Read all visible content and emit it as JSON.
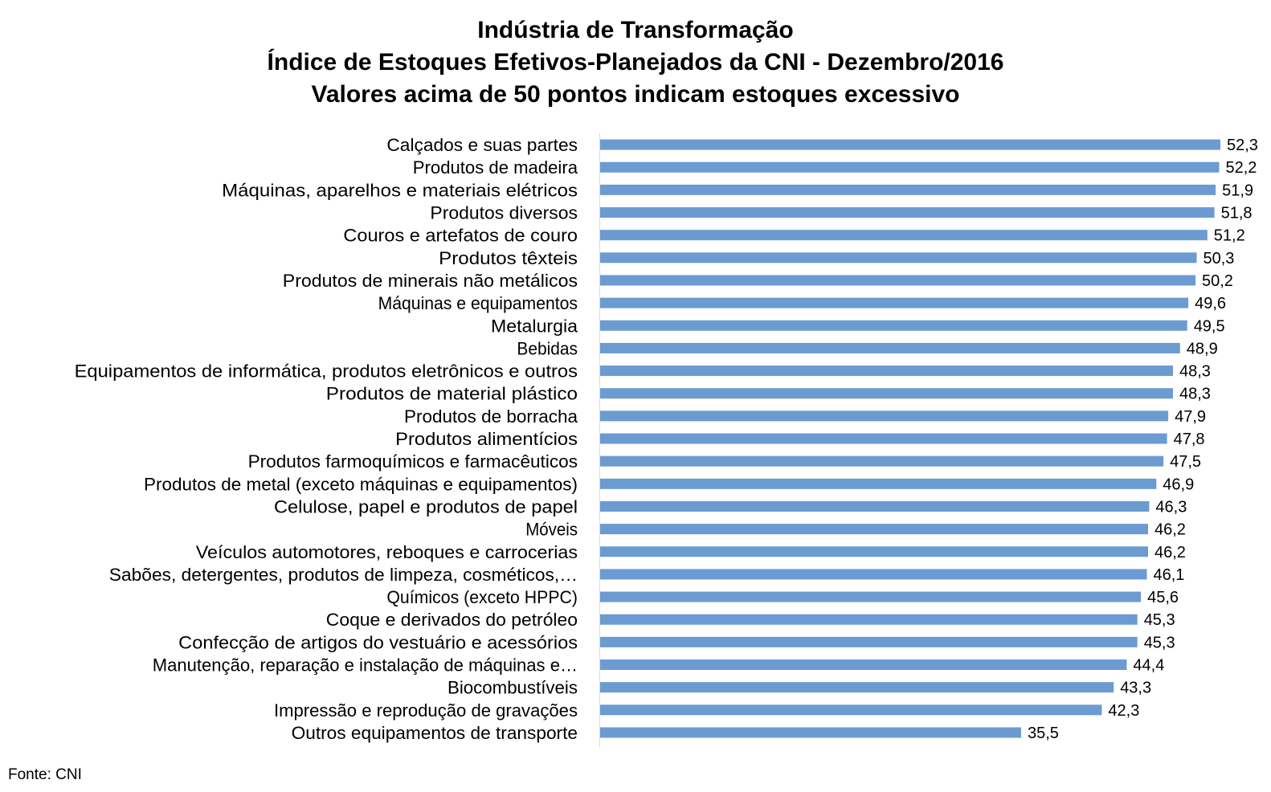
{
  "chart_data": {
    "type": "bar",
    "orientation": "horizontal",
    "title_lines": [
      "Indústria de Transformação",
      "Índice de Estoques Efetivos-Planejados da CNI - Dezembro/2016",
      "Valores acima de 50 pontos indicam estoques excessivo"
    ],
    "categories": [
      "Calçados e suas partes",
      "Produtos de madeira",
      "Máquinas, aparelhos e materiais elétricos",
      "Produtos diversos",
      "Couros e artefatos de couro",
      "Produtos têxteis",
      "Produtos de minerais não metálicos",
      "Máquinas e equipamentos",
      "Metalurgia",
      "Bebidas",
      "Equipamentos de informática, produtos eletrônicos e outros",
      "Produtos de material plástico",
      "Produtos de borracha",
      "Produtos alimentícios",
      "Produtos farmoquímicos e farmacêuticos",
      "Produtos de metal (exceto máquinas e equipamentos)",
      "Celulose, papel e produtos de papel",
      "Móveis",
      "Veículos automotores, reboques e carrocerias",
      "Sabões, detergentes, produtos de limpeza, cosméticos,…",
      "Químicos (exceto HPPC)",
      "Coque e derivados do petróleo",
      "Confecção de artigos do vestuário e acessórios",
      "Manutenção, reparação e instalação de máquinas e…",
      "Biocombustíveis",
      "Impressão e reprodução de gravações",
      "Outros equipamentos de transporte"
    ],
    "values": [
      52.3,
      52.2,
      51.9,
      51.8,
      51.2,
      50.3,
      50.2,
      49.6,
      49.5,
      48.9,
      48.3,
      48.3,
      47.9,
      47.8,
      47.5,
      46.9,
      46.3,
      46.2,
      46.2,
      46.1,
      45.6,
      45.3,
      45.3,
      44.4,
      43.3,
      42.3,
      35.5
    ],
    "value_labels": [
      "52,3",
      "52,2",
      "51,9",
      "51,8",
      "51,2",
      "50,3",
      "50,2",
      "49,6",
      "49,5",
      "48,9",
      "48,3",
      "48,3",
      "47,9",
      "47,8",
      "47,5",
      "46,9",
      "46,3",
      "46,2",
      "46,2",
      "46,1",
      "45,6",
      "45,3",
      "45,3",
      "44,4",
      "43,3",
      "42,3",
      "35,5"
    ],
    "xlim": [
      0,
      52.3
    ],
    "grid": false,
    "legend": "none",
    "bar_color": "#6b9bd1"
  },
  "source_note": "Fonte: CNI"
}
